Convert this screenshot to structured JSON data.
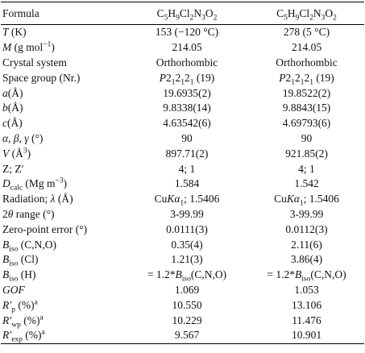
{
  "table": {
    "header": [
      "Formula",
      [
        "C",
        {
          "sub": "5"
        },
        "H",
        {
          "sub": "9"
        },
        "Cl",
        {
          "sub": "2"
        },
        "N",
        {
          "sub": "3"
        },
        "O",
        {
          "sub": "2"
        }
      ],
      [
        "C",
        {
          "sub": "5"
        },
        "H",
        {
          "sub": "9"
        },
        "Cl",
        {
          "sub": "2"
        },
        "N",
        {
          "sub": "3"
        },
        "O",
        {
          "sub": "2"
        }
      ]
    ],
    "rows": [
      [
        [
          {
            "i": "T"
          },
          " (K)"
        ],
        "153 (−120 °C)",
        "278 (5 °C)"
      ],
      [
        [
          {
            "i": "M"
          },
          " (g mol",
          {
            "sup": "−1"
          },
          ")"
        ],
        "214.05",
        "214.05"
      ],
      [
        "Crystal system",
        "Orthorhombic",
        "Orthorhombic"
      ],
      [
        "Space group (Nr.)",
        [
          {
            "i": "P"
          },
          "2",
          {
            "sub": "1"
          },
          "2",
          {
            "sub": "1"
          },
          "2",
          {
            "sub": "1"
          },
          " (19)"
        ],
        [
          {
            "i": "P"
          },
          "2",
          {
            "sub": "1"
          },
          "2",
          {
            "sub": "1"
          },
          "2",
          {
            "sub": "1"
          },
          " (19)"
        ]
      ],
      [
        [
          {
            "i": "a"
          },
          "(Å)"
        ],
        "19.6935(2)",
        "19.8522(2)"
      ],
      [
        [
          {
            "i": "b"
          },
          "(Å)"
        ],
        "9.8338(14)",
        "9.8843(15)"
      ],
      [
        [
          {
            "i": "c"
          },
          "(Å)"
        ],
        "4.63542(6)",
        "4.69793(6)"
      ],
      [
        [
          {
            "i": "α, β, γ"
          },
          " (°)"
        ],
        "90",
        "90"
      ],
      [
        [
          {
            "i": "V"
          },
          " (Å",
          {
            "sup": "3"
          },
          ")"
        ],
        "897.71(2)",
        "921.85(2)"
      ],
      [
        "Z; Z′",
        "4; 1",
        "4; 1"
      ],
      [
        [
          {
            "i": "D"
          },
          {
            "sub": "calc"
          },
          " (Mg m",
          {
            "sup": "−3"
          },
          ")"
        ],
        "1.584",
        "1.542"
      ],
      [
        [
          "Radiation; ",
          {
            "i": "λ"
          },
          " (Å)"
        ],
        [
          "Cu",
          {
            "i": "Kα"
          },
          {
            "sub": "1"
          },
          "; 1.5406"
        ],
        [
          "Cu",
          {
            "i": "Kα"
          },
          {
            "sub": "1"
          },
          "; 1.5406"
        ]
      ],
      [
        [
          "2",
          {
            "i": "θ"
          },
          " range (°)"
        ],
        "3-99.99",
        "3-99.99"
      ],
      [
        "Zero-point error (°)",
        "0.0111(3)",
        "0.0112(3)"
      ],
      [
        [
          {
            "i": "B"
          },
          {
            "sub": "iso"
          },
          " (C,N,O)"
        ],
        "0.35(4)",
        "2.11(6)"
      ],
      [
        [
          {
            "i": "B"
          },
          {
            "sub": "iso"
          },
          " (Cl)"
        ],
        "1.21(3)",
        "3.86(4)"
      ],
      [
        [
          {
            "i": "B"
          },
          {
            "sub": "iso"
          },
          " (H)"
        ],
        [
          "= 1.2*",
          {
            "i": "B"
          },
          {
            "sub": "iso"
          },
          "(C,N,O)"
        ],
        [
          "= 1.2*",
          {
            "i": "B"
          },
          {
            "sub": "iso"
          },
          "(C,N,O)"
        ]
      ],
      [
        [
          {
            "i": "GOF"
          }
        ],
        "1.069",
        "1.053"
      ],
      [
        [
          {
            "i": "R′"
          },
          {
            "sub": "p"
          },
          " (%)",
          {
            "sup": "a"
          }
        ],
        "10.550",
        "13.106"
      ],
      [
        [
          {
            "i": "R′"
          },
          {
            "sub": "wp"
          },
          " (%)",
          {
            "sup": "a"
          }
        ],
        "10.229",
        "11.476"
      ],
      [
        [
          {
            "i": "R′"
          },
          {
            "sub": "exp"
          },
          " (%)",
          {
            "sup": "a"
          }
        ],
        "9.567",
        "10.901"
      ]
    ]
  }
}
